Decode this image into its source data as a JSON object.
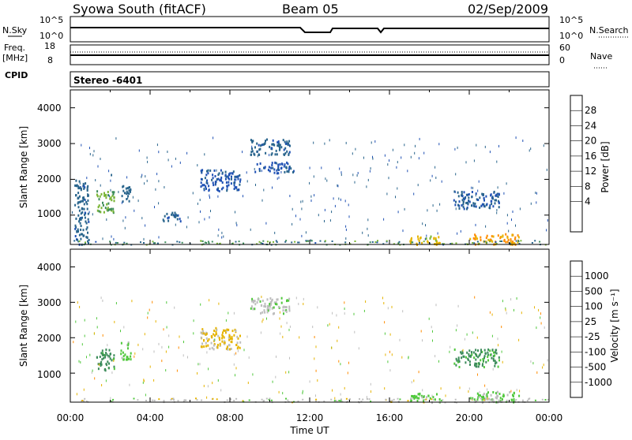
{
  "header": {
    "station": "Syowa South (fitACF)",
    "beam": "Beam 05",
    "date": "02/Sep/2009"
  },
  "top_panel": {
    "left_label": "N.Sky",
    "left_ticks": [
      "10^5",
      "10^0"
    ],
    "right_label": "N.Search",
    "right_ticks": [
      "10^5",
      "10^0"
    ]
  },
  "freq_panel": {
    "left_label_line1": "Freq.",
    "left_label_line2": "[MHz]",
    "left_ticks": [
      "18",
      "8"
    ],
    "right_label": "Nave",
    "right_ticks": [
      "60",
      "0"
    ]
  },
  "cpid": {
    "label": "CPID",
    "value": "Stereo -6401"
  },
  "power_panel": {
    "ylabel": "Slant Range [km]",
    "yticks": [
      "4000",
      "3000",
      "2000",
      "1000"
    ],
    "colorbar_label": "Power [dB]",
    "colorbar_ticks": [
      "28",
      "24",
      "20",
      "16",
      "12",
      "8",
      "4"
    ],
    "colors": [
      "#0000ff",
      "#1e50b4",
      "#28648c",
      "#3c8c5a",
      "#78b432",
      "#e6b400",
      "#ff8c00",
      "#ff5000",
      "#ff0000"
    ]
  },
  "velocity_panel": {
    "ylabel": "Slant Range [km]",
    "yticks": [
      "4000",
      "3000",
      "2000",
      "1000"
    ],
    "colorbar_label": "Velocity [m s⁻¹]",
    "colorbar_ticks": [
      "1000",
      "500",
      "100",
      "25",
      "-25",
      "-100",
      "-500",
      "-1000"
    ],
    "colors": [
      "#1e50b4",
      "#28648c",
      "#3c8c5a",
      "#50c83c",
      "#bebebe",
      "#e6b400",
      "#ff8c00",
      "#ff5000",
      "#ff0000"
    ]
  },
  "xaxis": {
    "label": "Time UT",
    "ticks": [
      "00:00",
      "04:00",
      "08:00",
      "12:00",
      "16:00",
      "20:00",
      "00:00"
    ]
  },
  "chart_data": {
    "type": "heatmap",
    "x_range_hours": [
      0,
      24
    ],
    "y_range_km": [
      180,
      4500
    ],
    "panels": [
      {
        "name": "Power",
        "unit": "dB",
        "color_range": [
          0,
          30
        ],
        "clusters": [
          {
            "t0": 0.2,
            "t1": 0.9,
            "r0": 200,
            "r1": 2000,
            "value": 8
          },
          {
            "t0": 1.3,
            "t1": 2.2,
            "r0": 1100,
            "r1": 1700,
            "value": 14
          },
          {
            "t0": 2.5,
            "t1": 3.0,
            "r0": 1400,
            "r1": 1900,
            "value": 8
          },
          {
            "t0": 4.5,
            "t1": 5.5,
            "r0": 850,
            "r1": 1100,
            "value": 8
          },
          {
            "t0": 6.5,
            "t1": 8.5,
            "r0": 1700,
            "r1": 2300,
            "value": 6
          },
          {
            "t0": 9.0,
            "t1": 11.0,
            "r0": 2700,
            "r1": 3150,
            "value": 8
          },
          {
            "t0": 9.2,
            "t1": 11.2,
            "r0": 2200,
            "r1": 2500,
            "value": 6
          },
          {
            "t0": 17.0,
            "t1": 18.5,
            "r0": 200,
            "r1": 450,
            "value": 18
          },
          {
            "t0": 19.2,
            "t1": 21.5,
            "r0": 1200,
            "r1": 1700,
            "value": 7
          },
          {
            "t0": 20.0,
            "t1": 22.5,
            "r0": 200,
            "r1": 500,
            "value": 20
          }
        ]
      },
      {
        "name": "Velocity",
        "unit": "m s^-1",
        "color_range": [
          -1000,
          1000
        ],
        "clusters": [
          {
            "t0": 1.3,
            "t1": 2.2,
            "r0": 1100,
            "r1": 1700,
            "value": -400
          },
          {
            "t0": 2.5,
            "t1": 3.0,
            "r0": 1400,
            "r1": 1900,
            "value": -200
          },
          {
            "t0": 6.5,
            "t1": 8.5,
            "r0": 1700,
            "r1": 2300,
            "value": 150
          },
          {
            "t0": 9.0,
            "t1": 11.0,
            "r0": 2700,
            "r1": 3150,
            "value": -50
          },
          {
            "t0": 17.0,
            "t1": 18.5,
            "r0": 200,
            "r1": 450,
            "value": -200
          },
          {
            "t0": 19.2,
            "t1": 21.5,
            "r0": 1200,
            "r1": 1700,
            "value": -400
          },
          {
            "t0": 20.0,
            "t1": 22.5,
            "r0": 200,
            "r1": 500,
            "value": -150
          }
        ]
      }
    ]
  }
}
